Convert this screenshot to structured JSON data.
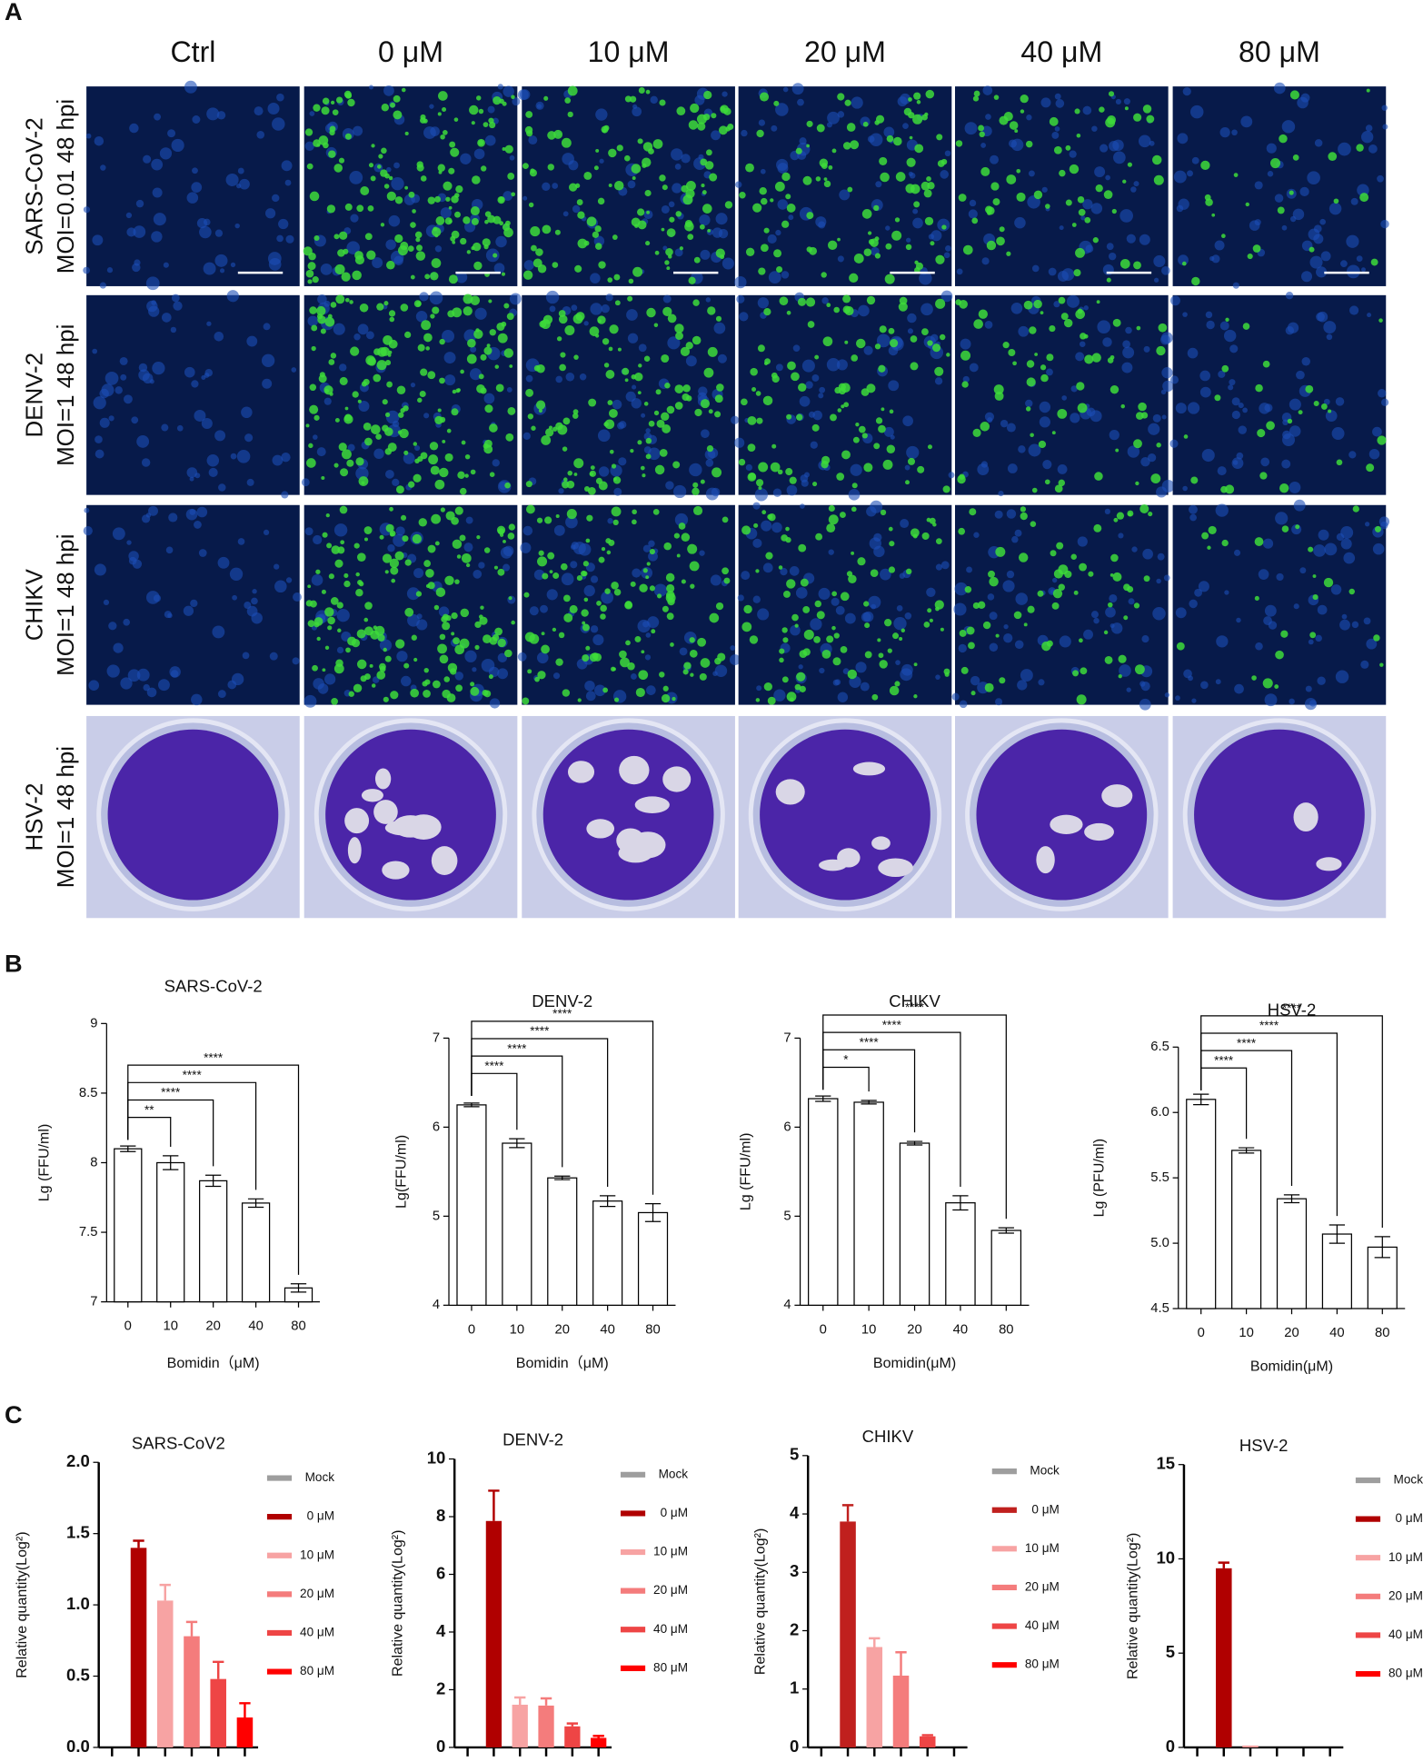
{
  "panels": {
    "A": {
      "label": "A",
      "columns": [
        "Ctrl",
        "0 μM",
        "10 μM",
        "20 μM",
        "40 μM",
        "80 μM"
      ],
      "rows": [
        {
          "virus": "SARS-CoV-2",
          "condition": "MOI=0.01 48 hpi"
        },
        {
          "virus": "DENV-2",
          "condition": "MOI=1 48 hpi"
        },
        {
          "virus": "CHIKV",
          "condition": "MOI=1 48 hpi"
        },
        {
          "virus": "HSV-2",
          "condition": "MOI=1 48 hpi"
        }
      ]
    },
    "B": {
      "label": "B"
    },
    "C": {
      "label": "C"
    }
  },
  "chart_data": [
    {
      "type": "bar",
      "title": "SARS-CoV-2",
      "ylabel": "Lg (FFU/ml)",
      "xlabel": "Bomidin（μM)",
      "categories": [
        "0",
        "10",
        "20",
        "40",
        "80"
      ],
      "values": [
        8.1,
        8.0,
        7.87,
        7.71,
        7.1
      ],
      "errors": [
        0.02,
        0.05,
        0.04,
        0.03,
        0.03
      ],
      "ylim": [
        7,
        9
      ],
      "yticks": [
        7,
        7.5,
        8,
        8.5,
        9
      ],
      "significance": [
        "**",
        "****",
        "****",
        "****"
      ]
    },
    {
      "type": "bar",
      "title": "DENV-2",
      "ylabel": "Lg(FFU/ml)",
      "xlabel": "Bomidin（μM)",
      "categories": [
        "0",
        "10",
        "20",
        "40",
        "80"
      ],
      "values": [
        6.25,
        5.82,
        5.43,
        5.17,
        5.04
      ],
      "errors": [
        0.02,
        0.05,
        0.02,
        0.06,
        0.1
      ],
      "ylim": [
        4,
        7
      ],
      "yticks": [
        4,
        5,
        6,
        7
      ],
      "significance": [
        "****",
        "****",
        "****",
        "****"
      ]
    },
    {
      "type": "bar",
      "title": "CHIKV",
      "ylabel": "Lg (FFU/ml)",
      "xlabel": "Bomidin(μM)",
      "categories": [
        "0",
        "10",
        "20",
        "40",
        "80"
      ],
      "values": [
        6.32,
        6.28,
        5.82,
        5.15,
        4.84
      ],
      "errors": [
        0.03,
        0.02,
        0.02,
        0.08,
        0.03
      ],
      "ylim": [
        4,
        7
      ],
      "yticks": [
        4,
        5,
        6,
        7
      ],
      "significance": [
        "*",
        "****",
        "****",
        "****"
      ]
    },
    {
      "type": "bar",
      "title": "HSV-2",
      "ylabel": "Lg (PFU/ml)",
      "xlabel": "Bomidin(μM)",
      "categories": [
        "0",
        "10",
        "20",
        "40",
        "80"
      ],
      "values": [
        6.1,
        5.71,
        5.34,
        5.07,
        4.97
      ],
      "errors": [
        0.04,
        0.02,
        0.03,
        0.07,
        0.08
      ],
      "ylim": [
        4.5,
        6.5
      ],
      "yticks": [
        4.5,
        {
          "value": 5,
          "label": "5.0"
        },
        5.5,
        {
          "value": 6,
          "label": "6.0"
        },
        6.5
      ],
      "significance": [
        "****",
        "****",
        "****",
        "****"
      ]
    },
    {
      "type": "colorbar",
      "title": "SARS-CoV2",
      "ylabel": "Relative quantity(Log²)",
      "categories": [
        "Mock",
        "0 μM",
        "10 μM",
        "20 μM",
        "40 μM",
        "80 μM"
      ],
      "colors": [
        "#9e9e9e",
        "#b00000",
        "#f7a3a3",
        "#f47c7c",
        "#ee4545",
        "#ff0000"
      ],
      "values": [
        0,
        1.4,
        1.03,
        0.78,
        0.48,
        0.21
      ],
      "errors": [
        0,
        0.05,
        0.11,
        0.1,
        0.12,
        0.1
      ],
      "ylim": [
        0,
        2
      ],
      "yticks": [
        {
          "value": 0,
          "label": "0.0"
        },
        0.5,
        {
          "value": 1,
          "label": "1.0"
        },
        1.5,
        {
          "value": 2,
          "label": "2.0"
        }
      ]
    },
    {
      "type": "colorbar",
      "title": "DENV-2",
      "ylabel": "Relative quantity(Log²)",
      "categories": [
        "Mock",
        "0 μM",
        "10 μM",
        "20 μM",
        "40 μM",
        "80 μM"
      ],
      "colors": [
        "#9e9e9e",
        "#b00000",
        "#f7a3a3",
        "#f47c7c",
        "#ee4545",
        "#ff0000"
      ],
      "values": [
        0,
        7.85,
        1.48,
        1.45,
        0.73,
        0.33
      ],
      "errors": [
        0,
        1.05,
        0.25,
        0.25,
        0.1,
        0.07
      ],
      "ylim": [
        0,
        10
      ],
      "yticks": [
        0,
        2,
        4,
        6,
        8,
        10
      ]
    },
    {
      "type": "colorbar",
      "title": "CHIKV",
      "ylabel": "Relative quantity(Log²)",
      "categories": [
        "Mock",
        "0 μM",
        "10 μM",
        "20 μM",
        "40 μM",
        "80 μM"
      ],
      "colors": [
        "#9e9e9e",
        "#c0201e",
        "#f7a3a3",
        "#f47c7c",
        "#ee4545",
        "#ff0000"
      ],
      "values": [
        0,
        3.87,
        1.72,
        1.23,
        0.19,
        0
      ],
      "errors": [
        0,
        0.28,
        0.15,
        0.4,
        0.02,
        0
      ],
      "ylim": [
        0,
        5
      ],
      "yticks": [
        0,
        1,
        2,
        3,
        4,
        5
      ]
    },
    {
      "type": "colorbar",
      "title": "HSV-2",
      "ylabel": "Relative quantity(Log²)",
      "categories": [
        "Mock",
        "0 μM",
        "10 μM",
        "20 μM",
        "40 μM",
        "80 μM"
      ],
      "colors": [
        "#9e9e9e",
        "#b00000",
        "#f7a3a3",
        "#f47c7c",
        "#ee4545",
        "#ff0000"
      ],
      "values": [
        0,
        9.5,
        0.1,
        0,
        0,
        0
      ],
      "errors": [
        0,
        0.3,
        0,
        0,
        0,
        0
      ],
      "ylim": [
        0,
        15
      ],
      "yticks": [
        0,
        5,
        10,
        15
      ]
    }
  ]
}
